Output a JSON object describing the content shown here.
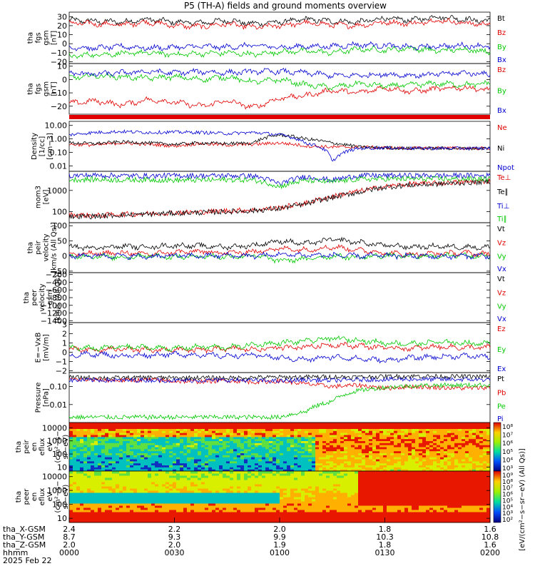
{
  "title": "P5 (TH-A) fields and ground moments overview",
  "colors": {
    "black": "#000000",
    "red": "#e00000",
    "green": "#00c800",
    "blue": "#0000d0"
  },
  "time_axis": {
    "ticks": [
      "0000",
      "0030",
      "0100",
      "0130",
      "0200"
    ],
    "row_labels": [
      "tha_X-GSM",
      "tha_Y-GSM",
      "tha_Z-GSM",
      "hhmm",
      "2025 Feb 22"
    ],
    "x_gsm": [
      "2.4",
      "2.2",
      "2.0",
      "1.8",
      "1.6"
    ],
    "y_gsm": [
      "8.7",
      "9.3",
      "9.9",
      "10.3",
      "10.8"
    ],
    "z_gsm": [
      "2.0",
      "2.0",
      "1.9",
      "1.8",
      "1.6"
    ]
  },
  "chart_data": [
    {
      "type": "line",
      "ylabel": [
        "tha",
        "fgs",
        "gsm",
        "[nT]"
      ],
      "ylim": [
        -22,
        35
      ],
      "yticks": [
        30,
        20,
        10,
        0,
        -10,
        -20
      ],
      "yticklabels": [
        "30",
        "20",
        "10",
        "0",
        "−10",
        "−20"
      ],
      "series": [
        {
          "name": "Bt",
          "color": "#000000",
          "values": [
            26,
            25,
            24,
            27,
            24,
            23,
            26,
            22,
            24,
            27,
            25,
            24,
            28,
            26,
            30,
            27,
            25
          ]
        },
        {
          "name": "Bz",
          "color": "#e00000",
          "values": [
            23,
            22,
            21,
            24,
            20,
            19,
            22,
            18,
            20,
            23,
            21,
            20,
            24,
            22,
            26,
            23,
            21
          ]
        },
        {
          "name": "By",
          "color": "#00c800",
          "values": [
            -14,
            -12,
            -11,
            -10,
            -12,
            -11,
            -10,
            -12,
            -9,
            -8,
            -10,
            -6,
            -7,
            -5,
            -8,
            -6,
            -9
          ]
        },
        {
          "name": "Bx",
          "color": "#0000d0",
          "values": [
            -4,
            -5,
            -3,
            -5,
            -4,
            -3,
            -4,
            -2,
            -4,
            -3,
            -3,
            -1,
            -2,
            -4,
            -3,
            -2,
            -3
          ]
        }
      ]
    },
    {
      "type": "line",
      "ylabel": [
        "tha",
        "fgs",
        "gsm",
        "[nT]"
      ],
      "ylim": [
        -26,
        12
      ],
      "yticks": [
        10,
        0,
        -10,
        -20
      ],
      "yticklabels": [
        "10",
        "0",
        "−10",
        "−20"
      ],
      "series": [
        {
          "name": "Bz",
          "color": "#e00000",
          "values": [
            -18,
            -16,
            -19,
            -15,
            -17,
            -20,
            -16,
            -21,
            -14,
            -12,
            -8,
            -10,
            -6,
            -9,
            -7,
            -6,
            -8
          ]
        },
        {
          "name": "By",
          "color": "#00c800",
          "values": [
            1,
            3,
            2,
            1,
            2,
            0,
            2,
            -2,
            0,
            -4,
            -6,
            -3,
            -5,
            -4,
            -3,
            -4,
            -3
          ]
        },
        {
          "name": "Bx",
          "color": "#0000d0",
          "values": [
            5,
            4,
            5,
            6,
            5,
            6,
            5,
            6,
            6,
            5,
            3,
            3,
            4,
            3,
            4,
            5,
            4
          ]
        }
      ]
    },
    {
      "type": "line",
      "ylabel": [
        "Density",
        "[1/cc]",
        "[cm−3]"
      ],
      "ylog": true,
      "ylim": [
        0.004,
        20
      ],
      "yticks": [
        10,
        1,
        0.1,
        0.01
      ],
      "yticklabels": [
        "10.00",
        "1.00",
        "0.10",
        "0.01"
      ],
      "series": [
        {
          "name": "Ne",
          "color": "#e00000",
          "values": [
            0.4,
            0.35,
            0.5,
            0.4,
            0.3,
            0.45,
            0.35,
            0.4,
            0.5,
            0.3,
            0.25,
            0.25,
            0.22,
            0.2,
            0.22,
            0.2,
            0.2
          ]
        },
        {
          "name": "Ni",
          "color": "#000000",
          "values": [
            0.5,
            0.45,
            0.6,
            0.5,
            0.4,
            0.5,
            0.45,
            0.5,
            2.0,
            1.0,
            0.5,
            0.25,
            0.22,
            0.2,
            0.2,
            0.2,
            0.2
          ]
        },
        {
          "name": "Npot",
          "color": "#0000d0",
          "values": [
            2.0,
            3.0,
            3.5,
            3.0,
            3.2,
            3.0,
            2.5,
            3.0,
            2.0,
            0.5,
            0.015,
            0.2,
            0.22,
            0.2,
            0.2,
            0.2,
            0.2
          ]
        }
      ]
    },
    {
      "type": "line",
      "ylabel": [
        "mom3",
        "[eV]"
      ],
      "ylog": true,
      "ylim": [
        30,
        8000
      ],
      "yticks": [
        1000,
        100
      ],
      "yticklabels": [
        "1000",
        "100"
      ],
      "series": [
        {
          "name": "Te⊥",
          "color": "#e00000",
          "values": [
            70,
            65,
            75,
            80,
            90,
            95,
            110,
            120,
            150,
            250,
            500,
            900,
            1500,
            2000,
            2200,
            2500,
            2800
          ]
        },
        {
          "name": "Te∥",
          "color": "#000000",
          "values": [
            60,
            60,
            70,
            75,
            85,
            90,
            100,
            110,
            140,
            220,
            450,
            800,
            1400,
            1800,
            2000,
            2300,
            2600
          ]
        },
        {
          "name": "Ti⊥",
          "color": "#0000d0",
          "values": [
            5000,
            5200,
            5000,
            4800,
            5000,
            4900,
            5000,
            4800,
            2000,
            4500,
            3000,
            5000,
            5000,
            5000,
            5000,
            5000,
            5000
          ]
        },
        {
          "name": "Ti∥",
          "color": "#00c800",
          "values": [
            3200,
            3300,
            3100,
            3200,
            3000,
            3100,
            3200,
            3100,
            1500,
            3000,
            2500,
            3400,
            3500,
            3500,
            3500,
            3500,
            3500
          ]
        }
      ]
    },
    {
      "type": "line",
      "ylabel": [
        "tha",
        "peir",
        "velocity",
        "[km/s (All Qs)]"
      ],
      "ylim": [
        -55,
        110
      ],
      "yticks": [
        100,
        50,
        0,
        -50
      ],
      "yticklabels": [
        "100",
        "50",
        "0",
        "−50"
      ],
      "series": [
        {
          "name": "Vt",
          "color": "#000000",
          "values": [
            30,
            28,
            32,
            30,
            35,
            33,
            30,
            35,
            50,
            40,
            55,
            45,
            35,
            30,
            32,
            30,
            28
          ]
        },
        {
          "name": "Vz",
          "color": "#e00000",
          "values": [
            5,
            8,
            10,
            6,
            12,
            15,
            10,
            14,
            25,
            20,
            30,
            20,
            10,
            5,
            8,
            10,
            6
          ]
        },
        {
          "name": "Vy",
          "color": "#00c800",
          "values": [
            -2,
            0,
            -5,
            2,
            -4,
            0,
            -3,
            2,
            -15,
            -10,
            0,
            -5,
            2,
            -2,
            0,
            3,
            -2
          ]
        },
        {
          "name": "Vx",
          "color": "#0000d0",
          "values": [
            0,
            2,
            0,
            -2,
            1,
            0,
            2,
            0,
            5,
            3,
            2,
            0,
            1,
            0,
            -1,
            0,
            1
          ]
        }
      ]
    },
    {
      "type": "line",
      "ylabel": [
        "tha",
        "peer",
        "velocity",
        "gsm",
        "[km/s (All Qs)]"
      ],
      "ylim": [
        -1450,
        -150
      ],
      "yticks": [
        -200,
        -400,
        -600,
        -800,
        -1000,
        -1200,
        -1400
      ],
      "yticklabels": [
        "−200",
        "−400",
        "−600",
        "−800",
        "−1000",
        "−1200",
        "−1400"
      ],
      "series": [
        {
          "name": "Vt",
          "color": "#000000",
          "values": []
        },
        {
          "name": "Vz",
          "color": "#e00000",
          "values": []
        },
        {
          "name": "Vy",
          "color": "#00c800",
          "values": []
        },
        {
          "name": "Vx",
          "color": "#0000d0",
          "values": []
        }
      ]
    },
    {
      "type": "line",
      "ylabel": [
        "E=−VxB",
        "[mV/m]"
      ],
      "ylim": [
        -2.2,
        3.2
      ],
      "yticks": [
        3,
        2,
        1,
        0,
        -1,
        -2
      ],
      "yticklabels": [
        "3",
        "2",
        "1",
        "0",
        "−1",
        "−2"
      ],
      "series": [
        {
          "name": "Ez",
          "color": "#e00000",
          "values": [
            0.3,
            0.2,
            0.4,
            0.2,
            0.3,
            0.2,
            0.4,
            0.3,
            0.5,
            0.6,
            0.8,
            0.7,
            0.5,
            0.4,
            0.6,
            0.5,
            0.5
          ]
        },
        {
          "name": "Ey",
          "color": "#00c800",
          "values": [
            0.5,
            0.4,
            0.6,
            0.5,
            0.4,
            0.6,
            0.5,
            0.8,
            1.0,
            1.2,
            1.5,
            1.3,
            1.0,
            0.9,
            1.1,
            1.0,
            0.9
          ]
        },
        {
          "name": "Ex",
          "color": "#0000d0",
          "values": [
            -0.3,
            -0.2,
            -0.4,
            -0.3,
            -0.2,
            -0.3,
            -0.4,
            -0.3,
            -0.6,
            -0.8,
            -0.5,
            -0.7,
            -0.9,
            -0.6,
            -0.5,
            -0.4,
            -0.5
          ]
        }
      ]
    },
    {
      "type": "line",
      "ylabel": [
        "Pressure",
        "[nPa]"
      ],
      "ylog": true,
      "ylim": [
        0.001,
        0.6
      ],
      "yticks": [
        0.1,
        0.01
      ],
      "yticklabels": [
        "0.10",
        "0.01"
      ],
      "series": [
        {
          "name": "Pt",
          "color": "#000000",
          "values": [
            0.32,
            0.31,
            0.3,
            0.32,
            0.3,
            0.31,
            0.3,
            0.32,
            0.33,
            0.34,
            0.35,
            0.34,
            0.36,
            0.38,
            0.37,
            0.36,
            0.35
          ]
        },
        {
          "name": "Pb",
          "color": "#e00000",
          "values": [
            0.25,
            0.23,
            0.22,
            0.24,
            0.2,
            0.19,
            0.22,
            0.18,
            0.2,
            0.14,
            0.1,
            0.12,
            0.08,
            0.1,
            0.09,
            0.08,
            0.09
          ]
        },
        {
          "name": "Pe",
          "color": "#00c800",
          "values": [
            0.002,
            0.002,
            0.002,
            0.002,
            0.002,
            0.002,
            0.002,
            0.002,
            0.002,
            0.004,
            0.015,
            0.06,
            0.09,
            0.11,
            0.12,
            0.12,
            0.12
          ]
        },
        {
          "name": "Pi",
          "color": "#0000d0",
          "values": [
            0.22,
            0.23,
            0.22,
            0.23,
            0.22,
            0.22,
            0.23,
            0.22,
            0.2,
            0.24,
            0.22,
            0.24,
            0.25,
            0.26,
            0.25,
            0.25,
            0.24
          ]
        }
      ]
    },
    {
      "type": "heatmap",
      "ylabel": [
        "tha",
        "peir",
        "en",
        "eflux",
        "eV",
        "(cm²−s−",
        "sr−eV)"
      ],
      "ylog": true,
      "ylim": [
        5,
        25000
      ],
      "yticks": [
        10000,
        1000,
        100,
        10
      ],
      "yticklabels": [
        "10000",
        "1000",
        "100",
        "10"
      ],
      "colorbar": {
        "ticks": [
          "10⁸",
          "10⁷",
          "10⁶",
          "10⁵",
          "10⁴",
          "10³"
        ],
        "label": "[eV/(cm²−s−sr−eV) (All Qs)]"
      }
    },
    {
      "type": "heatmap",
      "ylabel": [
        "tha",
        "peer",
        "en",
        "eflux",
        "eV",
        "(cm²−s−",
        "sr−eV)"
      ],
      "ylog": true,
      "ylim": [
        5,
        25000
      ],
      "yticks": [
        10000,
        1000,
        100,
        10
      ],
      "yticklabels": [
        "10000",
        "1000",
        "100",
        "10"
      ],
      "colorbar": {
        "ticks": [
          "10⁹",
          "10⁸",
          "10⁷",
          "10⁶",
          "10⁵",
          "10⁴",
          "10³",
          "10²"
        ],
        "label": "[eV/(cm²−s−sr−eV)]"
      }
    }
  ]
}
